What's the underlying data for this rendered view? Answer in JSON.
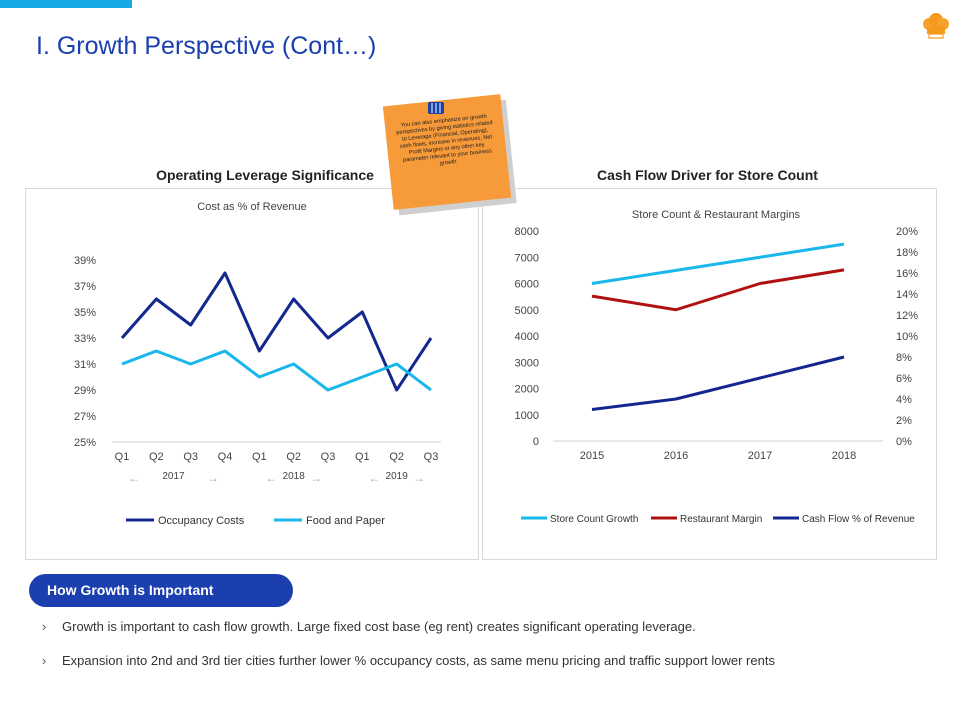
{
  "header": {
    "title": "I. Growth Perspective (Cont…)"
  },
  "note": {
    "text": "You can also emphasize on growth perspectives by giving statistics related to Leverage (Financial, Operating), cash flows, increase in revenues, Net Profit Margins or any other key parameter relevant to your business growth"
  },
  "left_panel": {
    "heading": "Operating Leverage Significance"
  },
  "right_panel": {
    "heading": "Cash Flow Driver for Store Count"
  },
  "chart_data": [
    {
      "type": "line",
      "title": "Cost as % of Revenue",
      "categories": [
        "Q1",
        "Q2",
        "Q3",
        "Q4",
        "Q1",
        "Q2",
        "Q3",
        "Q1",
        "Q2",
        "Q3"
      ],
      "group_labels": [
        "2017",
        "2018",
        "2019"
      ],
      "yticks": [
        "25%",
        "27%",
        "29%",
        "31%",
        "33%",
        "35%",
        "37%",
        "39%"
      ],
      "ylim": [
        25,
        40
      ],
      "series": [
        {
          "name": "Occupancy Costs",
          "color": "#13288f",
          "values": [
            33,
            36,
            34,
            38,
            32,
            36,
            33,
            35,
            29,
            33
          ]
        },
        {
          "name": "Food and Paper",
          "color": "#1ab7ea",
          "values": [
            31,
            32,
            31,
            32,
            30,
            31,
            29,
            30,
            31,
            29
          ]
        }
      ],
      "legend_position": "bottom"
    },
    {
      "type": "line",
      "title": "Store Count & Restaurant Margins",
      "categories": [
        "2015",
        "2016",
        "2017",
        "2018"
      ],
      "yticks_left": [
        "0",
        "1000",
        "2000",
        "3000",
        "4000",
        "5000",
        "6000",
        "7000",
        "8000"
      ],
      "yticks_right": [
        "0%",
        "2%",
        "4%",
        "6%",
        "8%",
        "10%",
        "12%",
        "14%",
        "16%",
        "18%",
        "20%"
      ],
      "ylim_left": [
        0,
        8000
      ],
      "ylim_right": [
        0,
        20
      ],
      "series": [
        {
          "name": "Store Count Growth",
          "color": "#1ab7ea",
          "axis": "left",
          "values": [
            6000,
            6500,
            7000,
            7500
          ]
        },
        {
          "name": "Restaurant Margin",
          "color": "#b01010",
          "axis": "right",
          "values": [
            13.8,
            12.5,
            15,
            16.3
          ]
        },
        {
          "name": "Cash Flow % of Revenue",
          "color": "#13288f",
          "axis": "right",
          "values": [
            3,
            4,
            6,
            8
          ]
        }
      ],
      "legend_position": "bottom"
    }
  ],
  "importance": {
    "label": "How Growth is Important",
    "bullets": [
      "Growth is important to cash flow growth. Large fixed cost base (eg rent) creates significant operating leverage.",
      "Expansion into 2nd and 3rd tier cities further lower % occupancy costs, as same menu pricing and traffic support lower rents"
    ]
  }
}
